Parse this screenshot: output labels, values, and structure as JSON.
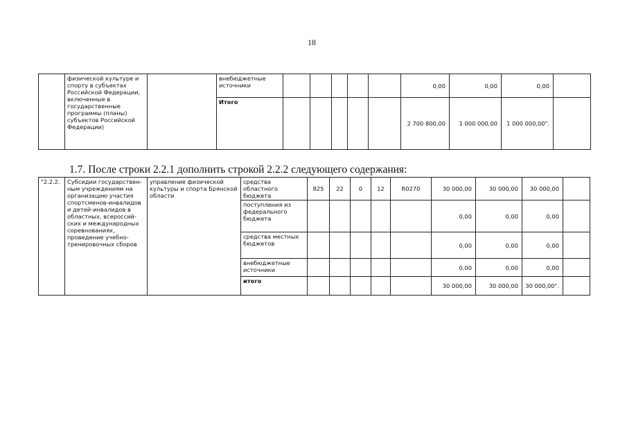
{
  "page_number": "18",
  "table1": {
    "description": "физической культуре и спорту в субъектах Российской Федерации, включенные в государственные программы (планы) субъектов Российской Федерации)",
    "rows": [
      {
        "source": "внебюджетные источники",
        "v1": "0,00",
        "v2": "0,00",
        "v3": "0,00"
      },
      {
        "source": "Итого",
        "v1": "2 700 800,00",
        "v2": "1 000 000,00",
        "v3": "1 000 000,00\"."
      }
    ]
  },
  "heading": "1.7. После строки 2.2.1 дополнить строкой 2.2.2 следующего содержания:",
  "table2": {
    "number": "\"2.2.2.",
    "description": "Субсидии государствен-ным учреждениям на организацию участия спортсменов-инвалидов и детей-инвалидов в областных, всероссий-ских и международных соревнованиях, проведение учебно-тренировочных сборов",
    "executor": "управление физической культуры и спорта Брянской области",
    "rows": [
      {
        "source": "средства областного бюджета",
        "grbs": "825",
        "rz": "22",
        "pr": "0",
        "cs": "12",
        "vr": "R0270",
        "v1": "30 000,00",
        "v2": "30 000,00",
        "v3": "30 000,00"
      },
      {
        "source": "поступления из федерального бюджета",
        "v1": "0,00",
        "v2": "0,00",
        "v3": "0,00"
      },
      {
        "source": "средства местных бюджетов",
        "v1": "0,00",
        "v2": "0,00",
        "v3": "0,00"
      },
      {
        "source": "внебюджетные источники",
        "v1": "0,00",
        "v2": "0,00",
        "v3": "0,00"
      },
      {
        "source": "итого",
        "v1": "30 000,00",
        "v2": "30 000,00",
        "v3": "30 000,00\"."
      }
    ]
  }
}
